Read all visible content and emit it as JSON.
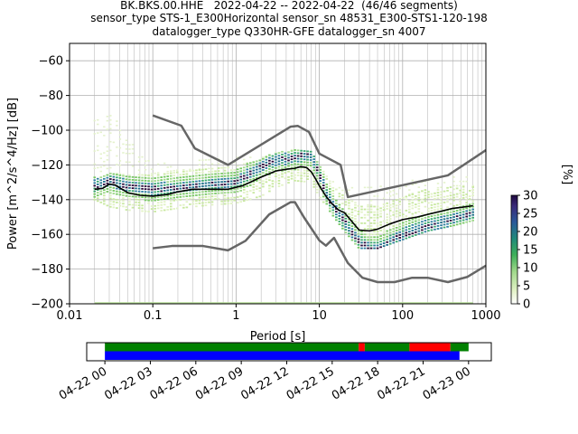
{
  "title": {
    "line1": "BK.BKS.00.HHE   2022-04-22 -- 2022-04-22  (46/46 segments)",
    "line2": "sensor_type STS-1_E300Horizontal sensor_sn 48531_E300-STS1-120-198",
    "line3": "datalogger_type Q330HR-GFE datalogger_sn 4007"
  },
  "chart_data": [
    {
      "type": "heatmap",
      "title": "",
      "xlabel": "Period [s]",
      "ylabel": "Power [m^2/s^4/Hz] [dB]",
      "x_scale": "log",
      "xlim": [
        0.01,
        1000
      ],
      "ylim": [
        -200,
        -50
      ],
      "x_ticks": [
        "0.01",
        "0.1",
        "1",
        "10",
        "100",
        "1000"
      ],
      "y_ticks": [
        "-200",
        "-180",
        "-160",
        "-140",
        "-120",
        "-100",
        "-80",
        "-60"
      ],
      "grid": true,
      "colorbar": {
        "label": "[%]",
        "min": 0,
        "max": 30,
        "ticks": [
          "0",
          "5",
          "10",
          "15",
          "20",
          "25",
          "30"
        ],
        "colormap": "CMRmap_r-like"
      },
      "colors": {
        "nlnm_nhnm": "#666666",
        "mean": "#000000",
        "pdf_high": "#2a0a3a",
        "pdf_mid": "#3aa870",
        "pdf_low": "#c8e8a0"
      },
      "noise_model_high": {
        "name": "NHNM",
        "points": [
          [
            0.1,
            -91.5
          ],
          [
            0.22,
            -97.4
          ],
          [
            0.32,
            -110.5
          ],
          [
            0.8,
            -120
          ],
          [
            4.5,
            -98
          ],
          [
            5.5,
            -97.5
          ],
          [
            7.5,
            -101
          ],
          [
            10,
            -113.5
          ],
          [
            18,
            -120
          ],
          [
            22,
            -138.5
          ],
          [
            350,
            -126
          ],
          [
            1000,
            -111.5
          ]
        ]
      },
      "noise_model_low": {
        "name": "NLNM",
        "points": [
          [
            0.1,
            -168
          ],
          [
            0.17,
            -166.7
          ],
          [
            0.4,
            -166.7
          ],
          [
            0.8,
            -169.2
          ],
          [
            1.3,
            -163.7
          ],
          [
            2.5,
            -148.5
          ],
          [
            4.5,
            -141.5
          ],
          [
            5.1,
            -141.5
          ],
          [
            6.5,
            -150
          ],
          [
            10,
            -163.5
          ],
          [
            12,
            -166.5
          ],
          [
            15,
            -162
          ],
          [
            22,
            -176.5
          ],
          [
            33,
            -185
          ],
          [
            50,
            -187.5
          ],
          [
            80,
            -187.5
          ],
          [
            130,
            -185
          ],
          [
            200,
            -185
          ],
          [
            350,
            -187.5
          ],
          [
            600,
            -184.5
          ],
          [
            1000,
            -178
          ]
        ]
      },
      "mean_psd": {
        "points": [
          [
            0.02,
            -134
          ],
          [
            0.025,
            -133.5
          ],
          [
            0.03,
            -131
          ],
          [
            0.035,
            -131.5
          ],
          [
            0.05,
            -136
          ],
          [
            0.07,
            -137.5
          ],
          [
            0.1,
            -138
          ],
          [
            0.15,
            -137
          ],
          [
            0.2,
            -135.5
          ],
          [
            0.3,
            -134
          ],
          [
            0.5,
            -134
          ],
          [
            0.8,
            -134
          ],
          [
            1.2,
            -132
          ],
          [
            2,
            -127
          ],
          [
            3,
            -123.5
          ],
          [
            4,
            -122.5
          ],
          [
            5,
            -122
          ],
          [
            6,
            -121
          ],
          [
            7,
            -121.5
          ],
          [
            8,
            -124
          ],
          [
            9,
            -128
          ],
          [
            10,
            -132
          ],
          [
            12,
            -138
          ],
          [
            14,
            -142
          ],
          [
            17,
            -146
          ],
          [
            20,
            -147.5
          ],
          [
            25,
            -153
          ],
          [
            30,
            -157.5
          ],
          [
            40,
            -158
          ],
          [
            50,
            -157
          ],
          [
            70,
            -154
          ],
          [
            100,
            -151.5
          ],
          [
            150,
            -150
          ],
          [
            200,
            -148.5
          ],
          [
            300,
            -146.5
          ],
          [
            400,
            -145
          ],
          [
            500,
            -144.5
          ],
          [
            700,
            -143.5
          ]
        ]
      },
      "mode_psd": {
        "points": [
          [
            0.02,
            -132
          ],
          [
            0.03,
            -129
          ],
          [
            0.05,
            -132
          ],
          [
            0.1,
            -134
          ],
          [
            0.2,
            -133
          ],
          [
            0.5,
            -131
          ],
          [
            1,
            -130
          ],
          [
            2,
            -121
          ],
          [
            3,
            -117
          ],
          [
            5,
            -116
          ],
          [
            7,
            -114
          ],
          [
            8,
            -115
          ],
          [
            10,
            -125
          ],
          [
            12,
            -136
          ],
          [
            15,
            -145
          ],
          [
            20,
            -153
          ],
          [
            30,
            -164
          ],
          [
            40,
            -168
          ],
          [
            50,
            -168
          ],
          [
            70,
            -164
          ],
          [
            100,
            -160
          ],
          [
            150,
            -157
          ],
          [
            200,
            -155
          ],
          [
            300,
            -153
          ],
          [
            500,
            -150
          ],
          [
            700,
            -148
          ]
        ]
      },
      "pdf_spread": {
        "points": [
          [
            0.02,
            -127,
            -140
          ],
          [
            0.025,
            -126,
            -142
          ],
          [
            0.03,
            -124,
            -144
          ],
          [
            0.05,
            -126,
            -146
          ],
          [
            0.1,
            -125,
            -147
          ],
          [
            0.2,
            -123,
            -145
          ],
          [
            0.5,
            -122,
            -143
          ],
          [
            1,
            -121,
            -142
          ],
          [
            2,
            -116,
            -138
          ],
          [
            3,
            -113,
            -133
          ],
          [
            5,
            -111,
            -129
          ],
          [
            8,
            -112,
            -130
          ],
          [
            10,
            -120,
            -138
          ],
          [
            15,
            -133,
            -150
          ],
          [
            20,
            -138,
            -158
          ],
          [
            30,
            -143,
            -168
          ],
          [
            50,
            -143,
            -168
          ],
          [
            100,
            -138,
            -163
          ],
          [
            200,
            -134,
            -158
          ],
          [
            400,
            -132,
            -155
          ],
          [
            700,
            -132,
            -152
          ]
        ]
      },
      "pdf_outliers": {
        "points": [
          [
            0.02,
            -90
          ],
          [
            0.025,
            -89
          ],
          [
            0.03,
            -88
          ],
          [
            0.04,
            -96
          ],
          [
            0.06,
            -108
          ],
          [
            0.1,
            -118
          ],
          [
            0.2,
            -118
          ],
          [
            0.5,
            -116
          ],
          [
            1,
            -115
          ],
          [
            2,
            -113
          ],
          [
            3,
            -112
          ],
          [
            5,
            -111
          ],
          [
            8,
            -113
          ],
          [
            12,
            -126
          ],
          [
            20,
            -132
          ],
          [
            40,
            -133
          ],
          [
            100,
            -129
          ],
          [
            300,
            -127
          ],
          [
            700,
            -124
          ]
        ]
      }
    },
    {
      "type": "timeline",
      "x_ticks": [
        "04-22 00",
        "04-22 03",
        "04-22 06",
        "04-22 09",
        "04-22 12",
        "04-22 15",
        "04-22 18",
        "04-22 21",
        "04-23 00"
      ],
      "x_range_hours": [
        -1.2,
        25.5
      ],
      "colors": {
        "data": "#008000",
        "gap": "#ff0000",
        "used": "#0000ff"
      },
      "data_segments": [
        [
          0,
          16.75,
          "data"
        ],
        [
          16.75,
          17.15,
          "gap"
        ],
        [
          17.15,
          20.1,
          "data"
        ],
        [
          20.1,
          22.8,
          "gap"
        ],
        [
          22.8,
          24,
          "data"
        ]
      ],
      "used_segments": [
        [
          0,
          23.4,
          "used"
        ]
      ]
    }
  ]
}
